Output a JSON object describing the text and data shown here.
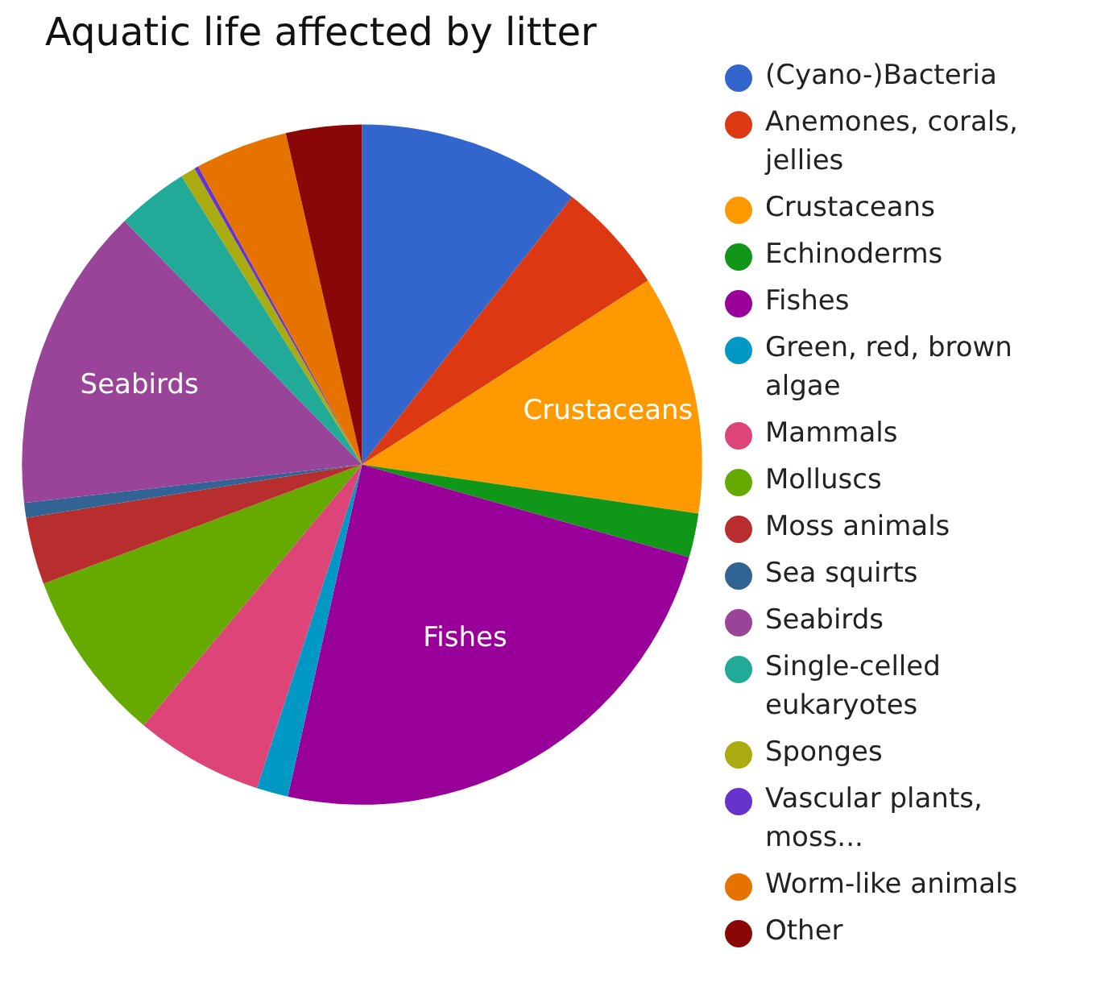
{
  "chart_data": {
    "type": "pie",
    "title": "Aquatic life affected by litter",
    "categories": [
      "(Cyano-)Bacteria",
      "Anemones, corals, jellies",
      "Crustaceans",
      "Echinoderms",
      "Fishes",
      "Green, red, brown algae",
      "Mammals",
      "Molluscs",
      "Moss animals",
      "Sea squirts",
      "Seabirds",
      "Single-celled eukaryotes",
      "Sponges",
      "Vascular plants, moss...",
      "Worm-like animals",
      "Other"
    ],
    "values": [
      10.6,
      5.3,
      11.4,
      2.1,
      24.1,
      1.5,
      6.1,
      8.2,
      3.2,
      0.7,
      14.5,
      3.4,
      0.7,
      0.2,
      4.4,
      3.6
    ],
    "colors": [
      "#3366cc",
      "#dc3912",
      "#ff9900",
      "#109618",
      "#990099",
      "#0099c6",
      "#dd4477",
      "#66aa00",
      "#b82e2e",
      "#316395",
      "#994499",
      "#22aa99",
      "#aaaa11",
      "#6633cc",
      "#e67300",
      "#8b0707"
    ],
    "value_labels": [
      null,
      null,
      "Crustaceans",
      null,
      "Fishes",
      null,
      null,
      null,
      null,
      null,
      "Seabirds",
      null,
      null,
      null,
      null,
      null
    ],
    "legend": "right"
  }
}
